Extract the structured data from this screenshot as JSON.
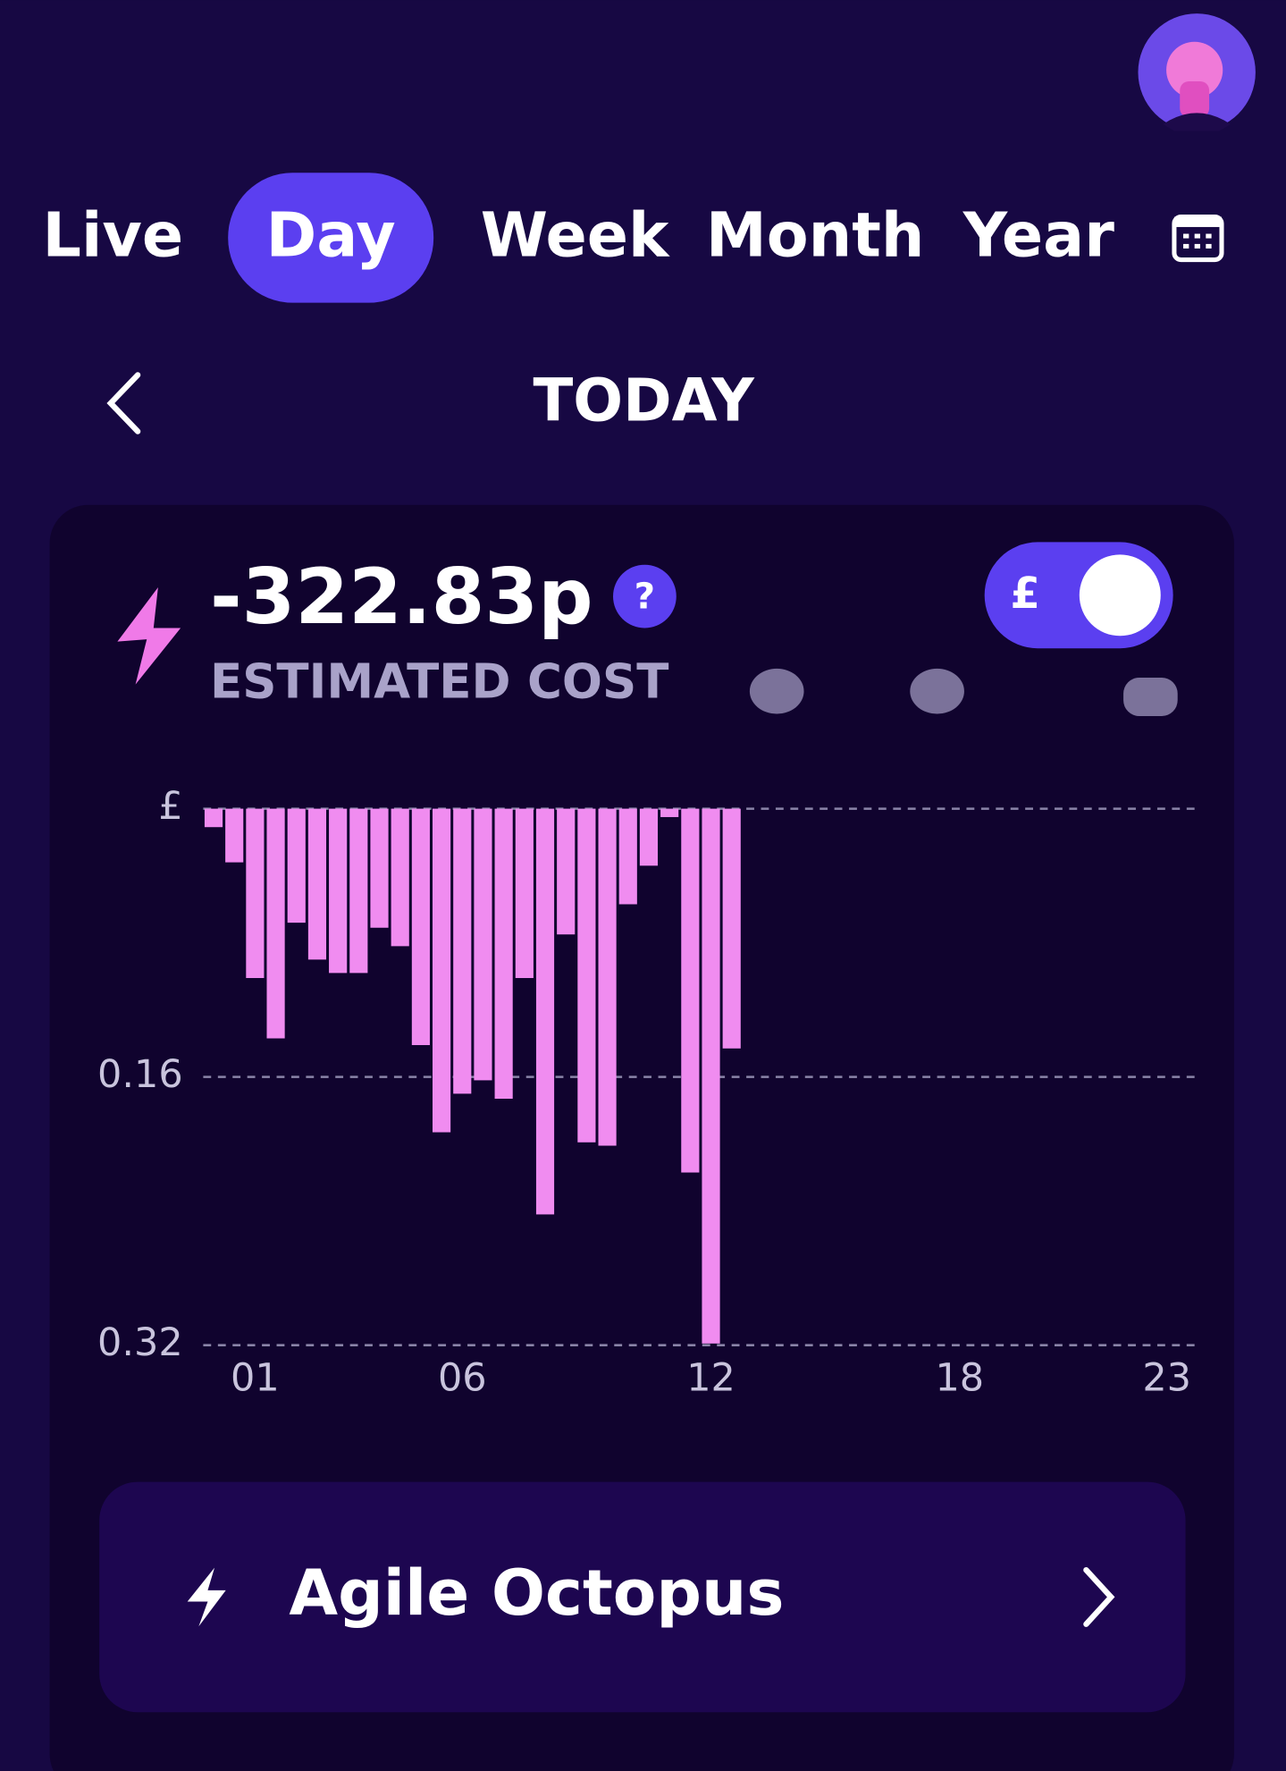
{
  "tabs": [
    "Live",
    "Day",
    "Week",
    "Month",
    "Year"
  ],
  "period": "TODAY",
  "summary": {
    "amount": "-322.83p",
    "label": "ESTIMATED COST",
    "help": "?",
    "toggle": "£"
  },
  "chart_data": {
    "type": "bar",
    "color": "#f08cf0",
    "categories": [
      null,
      null,
      "01",
      null,
      null,
      null,
      null,
      null,
      null,
      null,
      null,
      null,
      "06",
      null,
      null,
      null,
      null,
      null,
      null,
      null,
      null,
      null,
      null,
      null,
      "12",
      null,
      null,
      null,
      null,
      null,
      null,
      null,
      null,
      null,
      null,
      null,
      "18",
      null,
      null,
      null,
      null,
      null,
      null,
      null,
      null,
      null,
      "23",
      null
    ],
    "values": [
      0.011,
      0.032,
      0.101,
      0.137,
      0.068,
      0.09,
      0.098,
      0.098,
      0.071,
      0.082,
      0.141,
      0.193,
      0.17,
      0.162,
      0.173,
      0.101,
      0.242,
      0.075,
      0.199,
      0.201,
      0.057,
      0.034,
      0.005,
      0.217,
      0.319,
      0.143,
      null,
      null,
      null,
      null,
      null,
      null,
      null,
      null,
      null,
      null,
      null,
      null,
      null,
      null,
      null,
      null,
      null,
      null,
      null,
      null,
      null,
      null
    ],
    "ylim": [
      0,
      0.32
    ],
    "yticks": [
      {
        "value": 0,
        "label": "£"
      },
      0.16,
      0.32
    ],
    "grid": true
  },
  "tariff": "Agile Octopus"
}
